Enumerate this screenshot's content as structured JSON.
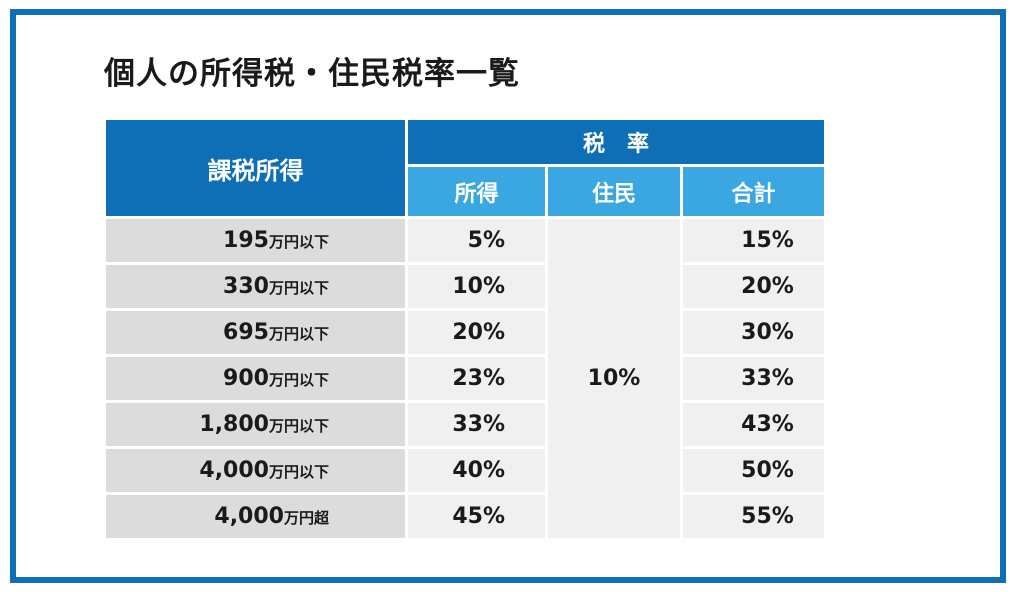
{
  "title": "個人の所得税・住民税率一覧",
  "header": {
    "income": "課税所得",
    "rate": "税率",
    "income_tax": "所得",
    "resident_tax": "住民",
    "total": "合計"
  },
  "resident_rate": "10%",
  "rows": [
    {
      "amount": "195",
      "unit": "万円以下",
      "income_tax": "5%",
      "total": "15%"
    },
    {
      "amount": "330",
      "unit": "万円以下",
      "income_tax": "10%",
      "total": "20%"
    },
    {
      "amount": "695",
      "unit": "万円以下",
      "income_tax": "20%",
      "total": "30%"
    },
    {
      "amount": "900",
      "unit": "万円以下",
      "income_tax": "23%",
      "total": "33%"
    },
    {
      "amount": "1,800",
      "unit": "万円以下",
      "income_tax": "33%",
      "total": "43%"
    },
    {
      "amount": "4,000",
      "unit": "万円以下",
      "income_tax": "40%",
      "total": "50%"
    },
    {
      "amount": "4,000",
      "unit": "万円超",
      "income_tax": "45%",
      "total": "55%"
    }
  ],
  "colors": {
    "frame": "#0e6fb6",
    "header_dark": "#0e6fb6",
    "header_light": "#3aa6e2",
    "income_cell": "#dcdcdc",
    "value_cell": "#f0f0f0"
  }
}
